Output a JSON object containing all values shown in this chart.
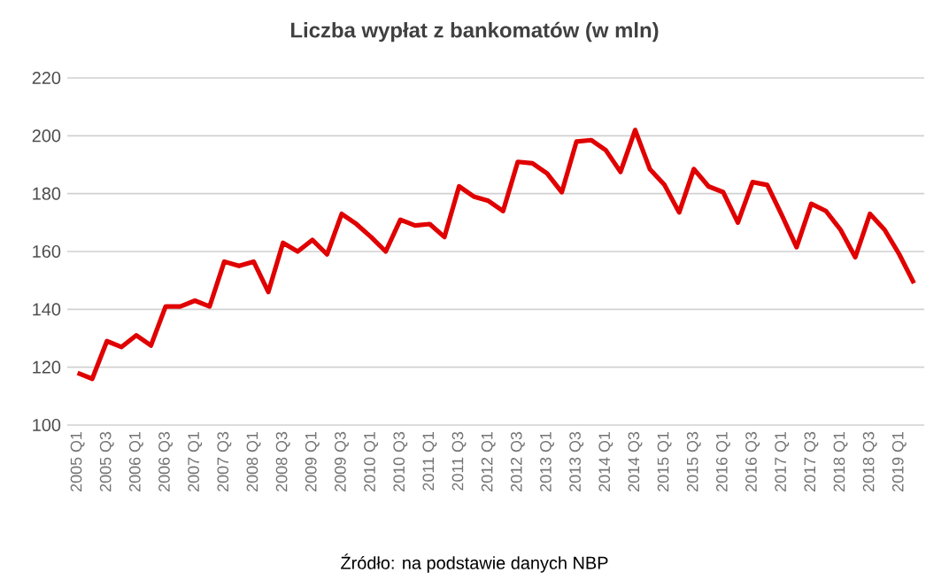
{
  "chart_data": {
    "type": "line",
    "title": "Liczba wypłat z bankomatów  (w mln)",
    "categories": [
      "2005 Q1",
      null,
      "2005 Q3",
      null,
      "2006 Q1",
      null,
      "2006 Q3",
      null,
      "2007 Q1",
      null,
      "2007 Q3",
      null,
      "2008 Q1",
      null,
      "2008 Q3",
      null,
      "2009 Q1",
      null,
      "2009 Q3",
      null,
      "2010 Q1",
      null,
      "2010 Q3",
      null,
      "2011 Q1",
      null,
      "2011 Q3",
      null,
      "2012 Q1",
      null,
      "2012 Q3",
      null,
      "2013 Q1",
      null,
      "2013 Q3",
      null,
      "2014 Q1",
      null,
      "2014 Q3",
      null,
      "2015 Q1",
      null,
      "2015 Q3",
      null,
      "2016 Q1",
      null,
      "2016 Q3",
      null,
      "2017 Q1",
      null,
      "2017 Q3",
      null,
      "2018 Q1",
      null,
      "2018 Q3",
      null,
      "2019 Q1",
      null
    ],
    "series": [
      {
        "color": "#e00000",
        "values": [
          118,
          116,
          129,
          127,
          131,
          127.5,
          141,
          141,
          143,
          141,
          156.5,
          155,
          156.5,
          146,
          163,
          160,
          164,
          159,
          173,
          169.5,
          165,
          160,
          171,
          169,
          169.5,
          165,
          182.5,
          179,
          177.5,
          174,
          191,
          190.5,
          187,
          180.5,
          198,
          198.5,
          195,
          187.5,
          202,
          188.5,
          183,
          173.5,
          188.5,
          182.5,
          180.5,
          170,
          184,
          183,
          172.5,
          161.5,
          176.5,
          174,
          167.5,
          158,
          173,
          167.5,
          159,
          149
        ]
      }
    ],
    "ylim": [
      100,
      220
    ],
    "yticks": [
      100,
      120,
      140,
      160,
      180,
      200,
      220
    ],
    "grid": "y",
    "marker": "none",
    "line_style": "solid",
    "annotations": [
      "Źródło: na podstawie danych NBP"
    ]
  }
}
